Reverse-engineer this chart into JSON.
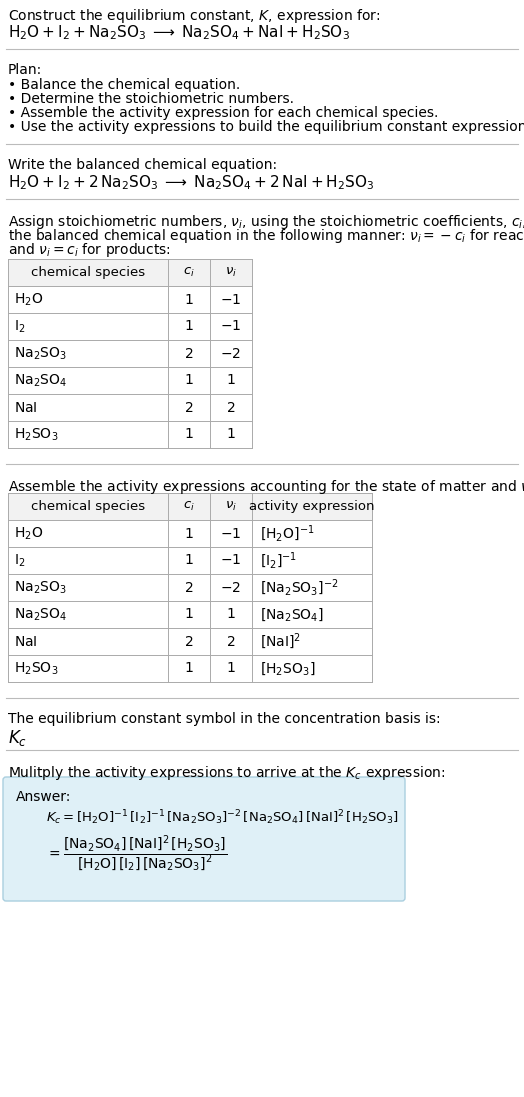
{
  "bg_color": "#ffffff",
  "text_color": "#000000",
  "title_line1": "Construct the equilibrium constant, $K$, expression for:",
  "title_line2": "$\\mathrm{H_2O + I_2 + Na_2SO_3 \\;\\longrightarrow\\; Na_2SO_4 + NaI + H_2SO_3}$",
  "plan_header": "Plan:",
  "plan_items": [
    "• Balance the chemical equation.",
    "• Determine the stoichiometric numbers.",
    "• Assemble the activity expression for each chemical species.",
    "• Use the activity expressions to build the equilibrium constant expression."
  ],
  "balanced_header": "Write the balanced chemical equation:",
  "balanced_eq": "$\\mathrm{H_2O + I_2 + 2\\,Na_2SO_3 \\;\\longrightarrow\\; Na_2SO_4 + 2\\,NaI + H_2SO_3}$",
  "stoich_header_lines": [
    "Assign stoichiometric numbers, $\\nu_i$, using the stoichiometric coefficients, $c_i$, from",
    "the balanced chemical equation in the following manner: $\\nu_i = -c_i$ for reactants",
    "and $\\nu_i = c_i$ for products:"
  ],
  "table1_headers": [
    "chemical species",
    "$c_i$",
    "$\\nu_i$"
  ],
  "table1_rows": [
    [
      "$\\mathrm{H_2O}$",
      "1",
      "$-1$"
    ],
    [
      "$\\mathrm{I_2}$",
      "1",
      "$-1$"
    ],
    [
      "$\\mathrm{Na_2SO_3}$",
      "2",
      "$-2$"
    ],
    [
      "$\\mathrm{Na_2SO_4}$",
      "1",
      "$1$"
    ],
    [
      "$\\mathrm{NaI}$",
      "2",
      "$2$"
    ],
    [
      "$\\mathrm{H_2SO_3}$",
      "1",
      "$1$"
    ]
  ],
  "activity_header": "Assemble the activity expressions accounting for the state of matter and $\\nu_i$:",
  "table2_headers": [
    "chemical species",
    "$c_i$",
    "$\\nu_i$",
    "activity expression"
  ],
  "table2_rows": [
    [
      "$\\mathrm{H_2O}$",
      "1",
      "$-1$",
      "$[\\mathrm{H_2O}]^{-1}$"
    ],
    [
      "$\\mathrm{I_2}$",
      "1",
      "$-1$",
      "$[\\mathrm{I_2}]^{-1}$"
    ],
    [
      "$\\mathrm{Na_2SO_3}$",
      "2",
      "$-2$",
      "$[\\mathrm{Na_2SO_3}]^{-2}$"
    ],
    [
      "$\\mathrm{Na_2SO_4}$",
      "1",
      "$1$",
      "$[\\mathrm{Na_2SO_4}]$"
    ],
    [
      "$\\mathrm{NaI}$",
      "2",
      "$2$",
      "$[\\mathrm{NaI}]^2$"
    ],
    [
      "$\\mathrm{H_2SO_3}$",
      "1",
      "$1$",
      "$[\\mathrm{H_2SO_3}]$"
    ]
  ],
  "kc_header": "The equilibrium constant symbol in the concentration basis is:",
  "kc_symbol": "$K_c$",
  "multiply_header": "Mulitply the activity expressions to arrive at the $K_c$ expression:",
  "answer_label": "Answer:",
  "answer_line1": "$K_c = [\\mathrm{H_2O}]^{-1}\\,[\\mathrm{I_2}]^{-1}\\,[\\mathrm{Na_2SO_3}]^{-2}\\,[\\mathrm{Na_2SO_4}]\\,[\\mathrm{NaI}]^2\\,[\\mathrm{H_2SO_3}]$",
  "answer_eq_lhs": "$= \\dfrac{[\\mathrm{Na_2SO_4}]\\,[\\mathrm{NaI}]^2\\,[\\mathrm{H_2SO_3}]}{[\\mathrm{H_2O}]\\,[\\mathrm{I_2}]\\,[\\mathrm{Na_2SO_3}]^2}$",
  "answer_box_color": "#dff0f7",
  "answer_box_border": "#aacfdf",
  "table_border_color": "#aaaaaa",
  "separator_color": "#bbbbbb"
}
